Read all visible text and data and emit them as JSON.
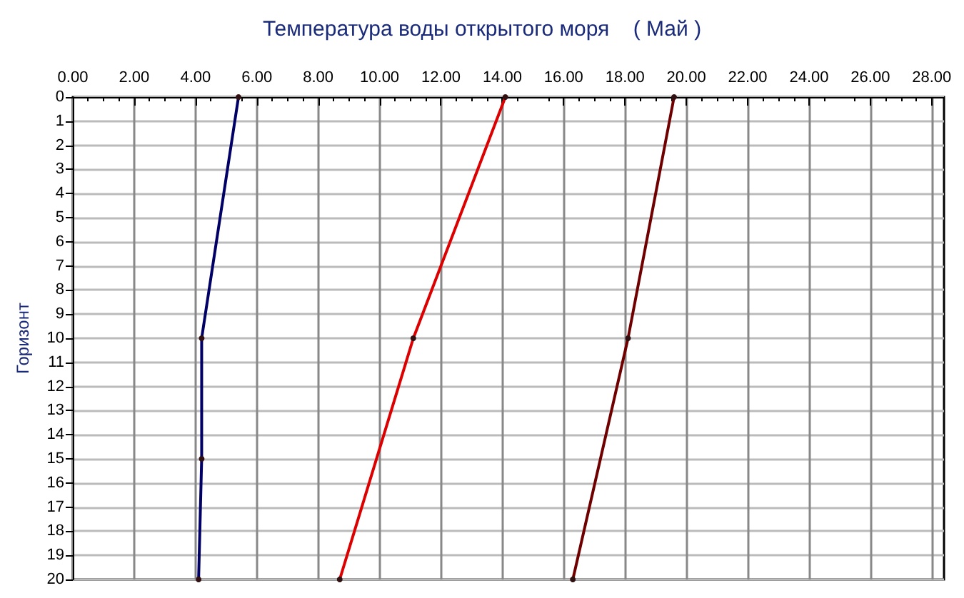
{
  "chart_data": {
    "type": "line",
    "title": "Температура воды открытого моря    ( Май )",
    "ylabel": "Горизонт",
    "xlim": [
      0,
      28.4
    ],
    "xticks": [
      {
        "value": 0,
        "label": "0.00"
      },
      {
        "value": 2,
        "label": "2.00"
      },
      {
        "value": 4,
        "label": "4.00"
      },
      {
        "value": 6,
        "label": "6.00"
      },
      {
        "value": 8,
        "label": "8.00"
      },
      {
        "value": 10,
        "label": "10.00"
      },
      {
        "value": 12,
        "label": "12.00"
      },
      {
        "value": 14,
        "label": "14.00"
      },
      {
        "value": 16,
        "label": "16.00"
      },
      {
        "value": 18,
        "label": "18.00"
      },
      {
        "value": 20,
        "label": "20.00"
      },
      {
        "value": 22,
        "label": "22.00"
      },
      {
        "value": 24,
        "label": "24.00"
      },
      {
        "value": 26,
        "label": "26.00"
      },
      {
        "value": 28,
        "label": "28.00"
      }
    ],
    "ylim": [
      20,
      0
    ],
    "yticks": [
      0,
      1,
      2,
      3,
      4,
      5,
      6,
      7,
      8,
      9,
      10,
      11,
      12,
      13,
      14,
      15,
      16,
      17,
      18,
      19,
      20
    ],
    "grid": true,
    "marker": "circle",
    "line_style": "solid",
    "series": [
      {
        "color": "#000066",
        "x": [
          5.4,
          4.2,
          4.2,
          4.1
        ],
        "values": [
          0,
          10,
          15,
          20
        ]
      },
      {
        "color": "#dd0000",
        "x": [
          14.1,
          11.1,
          8.7
        ],
        "values": [
          0,
          10,
          20
        ]
      },
      {
        "color": "#700000",
        "x": [
          19.6,
          18.1,
          16.3
        ],
        "values": [
          0,
          10,
          20
        ]
      }
    ]
  }
}
